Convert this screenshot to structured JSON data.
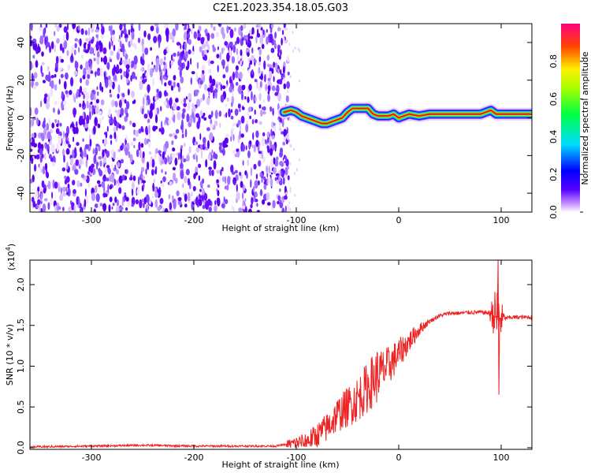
{
  "title": "C2E1.2023.354.18.05.G03",
  "colorbar": {
    "label": "Normalized spectral amplitude",
    "ticks": [
      "0.0",
      "0.2",
      "0.4",
      "0.6",
      "0.8"
    ],
    "tick_values": [
      0.0,
      0.2,
      0.4,
      0.6,
      0.8
    ],
    "range": [
      0,
      1
    ],
    "colors": [
      "#ffffff",
      "#cc99ff",
      "#5500ff",
      "#0000ff",
      "#00ddff",
      "#00ff40",
      "#aaff00",
      "#ffee00",
      "#ff4400",
      "#ff0080"
    ]
  },
  "chart_data": [
    {
      "type": "heatmap",
      "xlabel": "Height of straight line (km)",
      "ylabel": "Frequency (Hz)",
      "xlim": [
        -360,
        130
      ],
      "ylim": [
        -50,
        50
      ],
      "xticks": [
        -300,
        -200,
        -100,
        0,
        100
      ],
      "xtick_labels": [
        "-300",
        "-200",
        "-100",
        "0",
        "100"
      ],
      "yticks": [
        -40,
        -20,
        0,
        20,
        40
      ],
      "ytick_labels": [
        "-40",
        "-20",
        "0",
        "20",
        "40"
      ],
      "noise_region_x": [
        -360,
        -112
      ],
      "ridge": {
        "x": [
          -112,
          -105,
          -100,
          -95,
          -90,
          -85,
          -80,
          -75,
          -70,
          -65,
          -60,
          -55,
          -50,
          -45,
          -40,
          -35,
          -30,
          -25,
          -20,
          -15,
          -10,
          -5,
          0,
          5,
          10,
          20,
          30,
          40,
          50,
          60,
          70,
          80,
          85,
          90,
          95,
          100,
          110,
          120,
          130
        ],
        "y": [
          3,
          4,
          3,
          1,
          0,
          -1,
          -2,
          -3,
          -3,
          -2,
          -1,
          0,
          3,
          5,
          5,
          5,
          5,
          2,
          1,
          1,
          1,
          2,
          0,
          1,
          2,
          1,
          2,
          2,
          2,
          2,
          2,
          2,
          3,
          4,
          2,
          2,
          2,
          2,
          2
        ]
      },
      "colors": {
        "noise": "#6a0dff",
        "ridge_core": "#ee1111"
      }
    },
    {
      "type": "line",
      "xlabel": "Height of straight line (km)",
      "ylabel": "SNR (10 * v/v)",
      "y_scale_label": "(x10",
      "y_scale_exp": "4",
      "y_scale_close": ")",
      "xlim": [
        -360,
        130
      ],
      "ylim": [
        -0.02,
        2.3
      ],
      "xticks": [
        -300,
        -200,
        -100,
        0,
        100
      ],
      "xtick_labels": [
        "-300",
        "-200",
        "-100",
        "0",
        "100"
      ],
      "yticks": [
        0.0,
        0.5,
        1.0,
        1.5,
        2.0
      ],
      "ytick_labels": [
        "0.0",
        "0.5",
        "1.0",
        "1.5",
        "2.0"
      ],
      "series": [
        {
          "color": "#ee2222",
          "x": [
            -360,
            -300,
            -250,
            -200,
            -150,
            -120,
            -110,
            -100,
            -90,
            -80,
            -70,
            -60,
            -50,
            -40,
            -30,
            -20,
            -10,
            0,
            10,
            20,
            30,
            40,
            50,
            60,
            70,
            80,
            90,
            95,
            97,
            100,
            110,
            120,
            130
          ],
          "values": [
            0.01,
            0.02,
            0.03,
            0.02,
            0.02,
            0.02,
            0.04,
            0.06,
            0.08,
            0.15,
            0.25,
            0.4,
            0.5,
            0.6,
            0.75,
            0.9,
            1.0,
            1.15,
            1.3,
            1.45,
            1.55,
            1.62,
            1.65,
            1.65,
            1.66,
            1.66,
            1.65,
            1.62,
            1.6,
            1.58,
            1.6,
            1.6,
            1.6
          ]
        }
      ]
    }
  ]
}
